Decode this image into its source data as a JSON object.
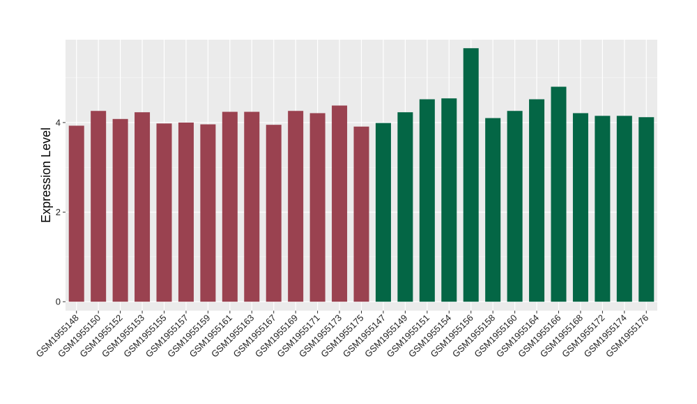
{
  "chart_data": {
    "type": "bar",
    "title": "",
    "xlabel": "",
    "ylabel": "Expression Level",
    "ylim": [
      -0.2,
      5.85
    ],
    "yticks": [
      0,
      2,
      4
    ],
    "grid": true,
    "legend": "none",
    "background_color": "#ebebeb",
    "categories": [
      "GSM1955148",
      "GSM1955150",
      "GSM1955152",
      "GSM1955153",
      "GSM1955155",
      "GSM1955157",
      "GSM1955159",
      "GSM1955161",
      "GSM1955163",
      "GSM1955167",
      "GSM1955169",
      "GSM1955171",
      "GSM1955173",
      "GSM1955175",
      "GSM1955147",
      "GSM1955149",
      "GSM1955151",
      "GSM1955154",
      "GSM1955156",
      "GSM1955158",
      "GSM1955160",
      "GSM1955164",
      "GSM1955166",
      "GSM1955168",
      "GSM1955172",
      "GSM1955174",
      "GSM1955176"
    ],
    "values": [
      3.93,
      4.26,
      4.08,
      4.23,
      3.98,
      4.0,
      3.96,
      4.24,
      4.24,
      3.95,
      4.26,
      4.21,
      4.38,
      3.91,
      3.99,
      4.23,
      4.52,
      4.54,
      5.66,
      4.1,
      4.26,
      4.52,
      4.8,
      4.21,
      4.15,
      4.15,
      4.12
    ],
    "groups": [
      1,
      1,
      1,
      1,
      1,
      1,
      1,
      1,
      1,
      1,
      1,
      1,
      1,
      1,
      2,
      2,
      2,
      2,
      2,
      2,
      2,
      2,
      2,
      2,
      2,
      2,
      2
    ],
    "group_colors": [
      "#9a4250",
      "#046645"
    ]
  }
}
